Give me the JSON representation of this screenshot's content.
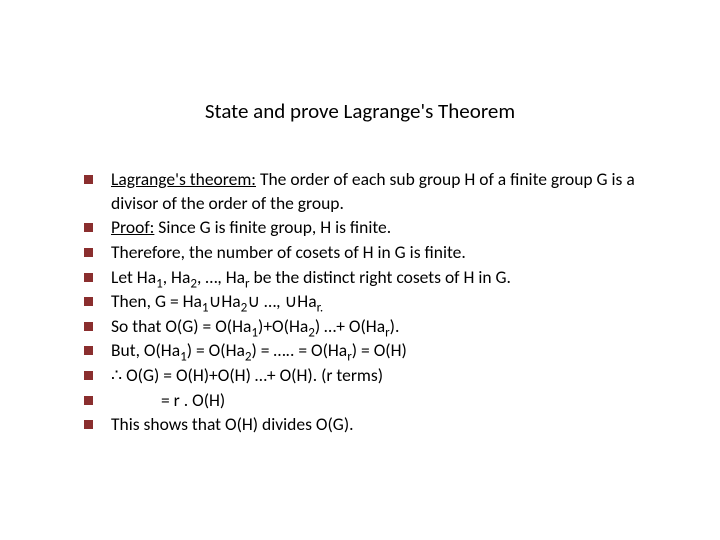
{
  "slide": {
    "title": "State and prove Lagrange's Theorem",
    "bullet_marker_color": "#8a2e2e",
    "text_color": "#000000",
    "background_color": "#ffffff",
    "title_fontsize": 21,
    "body_fontsize": 17.5,
    "bullets": [
      {
        "prefix_underlined": " Lagrange's theorem:",
        "rest": " The order of each sub group H of a finite group G  is a divisor of the  order of the group.",
        "indent": false
      },
      {
        "prefix_underlined": "Proof:",
        "rest": "  Since G is finite group, H is finite.",
        "indent": false
      },
      {
        "text": "Therefore, the number of cosets of H in G is finite.",
        "indent": false
      },
      {
        "html": "Let Ha<sub>1</sub>, Ha<sub>2</sub>, …, Ha<sub>r</sub> be the distinct right cosets of H in G.",
        "indent": false
      },
      {
        "html": "Then, G = Ha<sub>1</sub>∪Ha<sub>2</sub>∪ …, ∪Ha<sub>r.</sub>",
        "indent": false
      },
      {
        "html": "So that  O(G) = O(Ha<sub>1</sub>)+O(Ha<sub>2</sub>) …+ O(Ha<sub>r</sub>).",
        "indent": false
      },
      {
        "html": "But, O(Ha<sub>1</sub>) = O(Ha<sub>2</sub>) = …..  = O(Ha<sub>r</sub>) = O(H)",
        "indent": false
      },
      {
        "text": "∴  O(G) = O(H)+O(H) …+ O(H). (r terms)",
        "indent": false
      },
      {
        "text": "= r . O(H)",
        "indent": true
      },
      {
        "text": "This shows that O(H) divides O(G).",
        "indent": false
      }
    ]
  }
}
